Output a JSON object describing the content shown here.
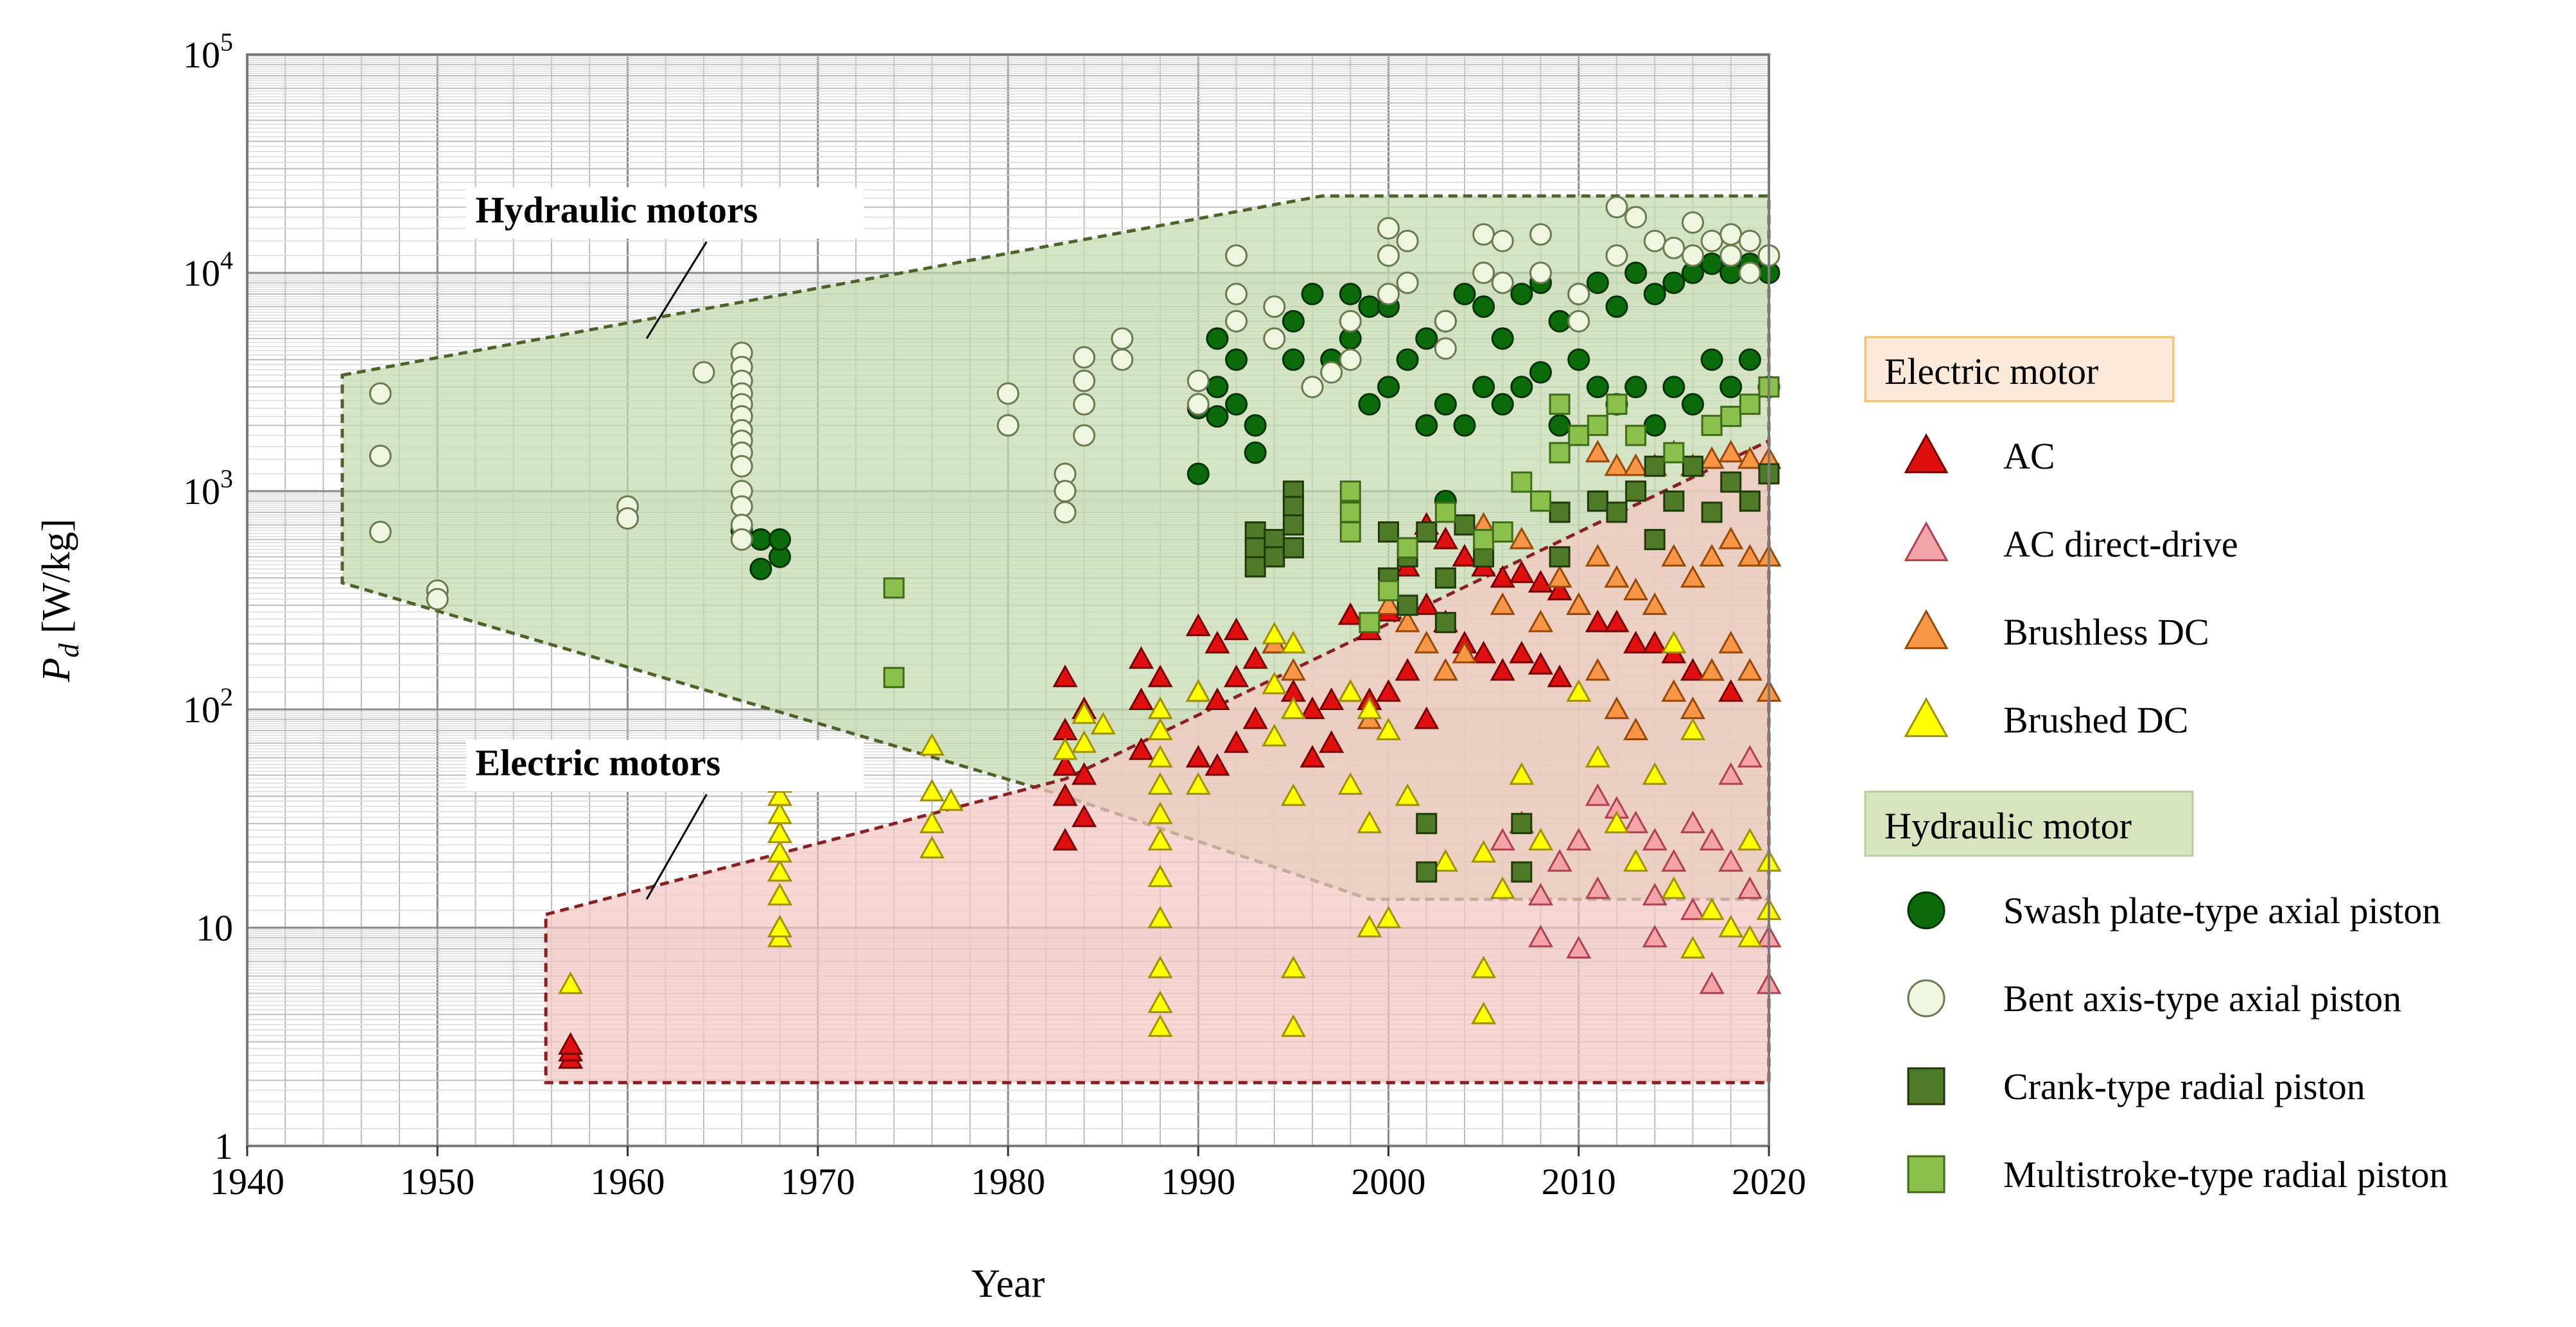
{
  "chart_data": {
    "type": "scatter",
    "title": "",
    "xlabel": "Year",
    "ylabel_main": "P",
    "ylabel_sub": "d",
    "ylabel_units": " [W/kg]",
    "xlim": [
      1940,
      2020
    ],
    "ylim": [
      1,
      100000
    ],
    "yscale": "log",
    "grid": true,
    "x_ticks": [
      1940,
      1950,
      1960,
      1970,
      1980,
      1990,
      2000,
      2010,
      2020
    ],
    "y_ticks": [
      {
        "value": 1,
        "label": "1",
        "sup": ""
      },
      {
        "value": 10,
        "label": "10",
        "sup": ""
      },
      {
        "value": 100,
        "label": "10",
        "sup": "2"
      },
      {
        "value": 1000,
        "label": "10",
        "sup": "3"
      },
      {
        "value": 10000,
        "label": "10",
        "sup": "4"
      },
      {
        "value": 100000,
        "label": "10",
        "sup": "5"
      }
    ],
    "regions": [
      {
        "name": "Hydraulic motors",
        "polygon": [
          [
            1945,
            3400
          ],
          [
            1996.5,
            22500
          ],
          [
            2020,
            22500
          ],
          [
            2020,
            13.5
          ],
          [
            1999,
            13.5
          ],
          [
            1983,
            40
          ],
          [
            1945,
            380
          ]
        ],
        "fill": "#c6d9b0",
        "stroke": "#4f6228",
        "label": "Hydraulic motors",
        "label_at": [
          1952,
          17000
        ],
        "leader_to": [
          1961,
          5000
        ]
      },
      {
        "name": "Electric motors",
        "polygon": [
          [
            1955.7,
            11.5
          ],
          [
            1983,
            48
          ],
          [
            2020,
            1700
          ],
          [
            2020,
            1.95
          ],
          [
            1955.7,
            1.95
          ]
        ],
        "fill": "#f4c7c3",
        "stroke": "#8b2020",
        "label": "Electric motors",
        "label_at": [
          1952,
          50
        ],
        "leader_to": [
          1961,
          13.5
        ]
      }
    ],
    "series": [
      {
        "name": "AC",
        "marker": "triangle",
        "fill": "#e01010",
        "edge": "#7a0000",
        "x": [
          1957,
          1957,
          1957,
          1983,
          1983,
          1983,
          1983,
          1983,
          1984,
          1984,
          1984,
          1987,
          1987,
          1987,
          1988,
          1990,
          1990,
          1990,
          1991,
          1991,
          1991,
          1992,
          1992,
          1992,
          1993,
          1993,
          1994,
          1995,
          1996,
          1996,
          1997,
          1997,
          1998,
          1998,
          1999,
          1999,
          2000,
          2000,
          2001,
          2001,
          2002,
          2002,
          2002,
          2003,
          2003,
          2004,
          2004,
          2005,
          2005,
          2006,
          2006,
          2007,
          2007,
          2008,
          2008,
          2009,
          2009,
          2010,
          2011,
          2012,
          2013,
          2014,
          2015,
          2016,
          2017,
          2018
        ],
        "y": [
          2.5,
          2.7,
          2.9,
          140,
          80,
          40,
          25,
          55,
          100,
          50,
          32,
          170,
          110,
          65,
          140,
          240,
          120,
          60,
          200,
          110,
          55,
          230,
          140,
          70,
          170,
          90,
          200,
          120,
          100,
          60,
          110,
          70,
          270,
          120,
          230,
          110,
          280,
          120,
          450,
          150,
          700,
          300,
          90,
          600,
          250,
          500,
          200,
          450,
          180,
          400,
          150,
          420,
          180,
          380,
          160,
          350,
          140,
          300,
          250,
          250,
          200,
          200,
          180,
          150,
          150,
          120
        ]
      },
      {
        "name": "AC direct-drive",
        "marker": "triangle",
        "fill": "#f4a3a8",
        "edge": "#b04050",
        "x": [
          2006,
          2007,
          2008,
          2008,
          2009,
          2010,
          2010,
          2011,
          2011,
          2012,
          2013,
          2014,
          2014,
          2014,
          2015,
          2016,
          2016,
          2017,
          2017,
          2018,
          2018,
          2019,
          2019,
          2020,
          2020
        ],
        "y": [
          25,
          30,
          9,
          14,
          20,
          8,
          25,
          15,
          40,
          35,
          30,
          9,
          14,
          25,
          20,
          12,
          30,
          5.5,
          25,
          20,
          50,
          15,
          60,
          5.5,
          9
        ]
      },
      {
        "name": "Brushless DC",
        "marker": "triangle",
        "fill": "#f79646",
        "edge": "#984807",
        "x": [
          1994,
          1995,
          1998,
          1999,
          2000,
          2001,
          2002,
          2003,
          2004,
          2005,
          2006,
          2007,
          2008,
          2009,
          2010,
          2011,
          2011,
          2011,
          2012,
          2012,
          2012,
          2013,
          2013,
          2013,
          2014,
          2014,
          2015,
          2015,
          2015,
          2016,
          2016,
          2016,
          2017,
          2017,
          2017,
          2018,
          2018,
          2018,
          2019,
          2019,
          2019,
          2020,
          2020,
          2020
        ],
        "y": [
          200,
          150,
          120,
          90,
          300,
          250,
          200,
          150,
          180,
          700,
          300,
          600,
          250,
          400,
          300,
          1500,
          500,
          150,
          1300,
          400,
          100,
          1300,
          350,
          80,
          1300,
          300,
          1500,
          500,
          120,
          1300,
          400,
          100,
          1400,
          500,
          150,
          1500,
          600,
          200,
          1400,
          500,
          150,
          1400,
          500,
          120
        ]
      },
      {
        "name": "Brushed DC",
        "marker": "triangle",
        "fill": "#ffff00",
        "edge": "#a09000",
        "x": [
          1957,
          1968,
          1968,
          1968,
          1968,
          1968,
          1968,
          1968,
          1968,
          1968,
          1976,
          1976,
          1976,
          1976,
          1977,
          1983,
          1984,
          1984,
          1985,
          1988,
          1988,
          1988,
          1988,
          1988,
          1988,
          1988,
          1988,
          1988,
          1988,
          1988,
          1990,
          1990,
          1994,
          1994,
          1994,
          1995,
          1995,
          1995,
          1995,
          1995,
          1998,
          1998,
          1999,
          1999,
          1999,
          2000,
          2000,
          2001,
          2003,
          2005,
          2005,
          2005,
          2006,
          2007,
          2008,
          2010,
          2011,
          2012,
          2013,
          2014,
          2015,
          2015,
          2016,
          2016,
          2017,
          2018,
          2019,
          2019,
          2020,
          2020
        ],
        "y": [
          5.5,
          9,
          10,
          14,
          18,
          22,
          27,
          33,
          40,
          46,
          23,
          30,
          42,
          68,
          38,
          65,
          95,
          70,
          85,
          100,
          80,
          60,
          45,
          33,
          25,
          17,
          11,
          6.5,
          4.5,
          3.5,
          120,
          45,
          220,
          130,
          75,
          200,
          100,
          40,
          6.5,
          3.5,
          120,
          45,
          100,
          30,
          10,
          80,
          11,
          40,
          20,
          22,
          6.5,
          4,
          15,
          50,
          25,
          120,
          60,
          30,
          20,
          50,
          200,
          15,
          80,
          8,
          12,
          10,
          9,
          25,
          12,
          20
        ]
      },
      {
        "name": "Swash plate-type axial piston",
        "marker": "circle",
        "fill": "#0b6b0b",
        "edge": "#003300",
        "x": [
          1966,
          1967,
          1967,
          1968,
          1968,
          1990,
          1990,
          1991,
          1991,
          1991,
          1992,
          1992,
          1993,
          1993,
          1995,
          1995,
          1996,
          1997,
          1998,
          1998,
          1999,
          1999,
          2000,
          2000,
          2001,
          2002,
          2002,
          2003,
          2003,
          2003,
          2004,
          2004,
          2005,
          2005,
          2006,
          2006,
          2007,
          2007,
          2008,
          2008,
          2009,
          2009,
          2010,
          2010,
          2011,
          2011,
          2012,
          2012,
          2013,
          2013,
          2014,
          2014,
          2015,
          2015,
          2016,
          2016,
          2017,
          2017,
          2018,
          2018,
          2019,
          2019,
          2020,
          2020
        ],
        "y": [
          660,
          600,
          440,
          500,
          600,
          1200,
          2400,
          2200,
          3000,
          5000,
          2500,
          4000,
          2000,
          1500,
          4000,
          6000,
          8000,
          4000,
          5000,
          8000,
          2500,
          7000,
          3000,
          7000,
          4000,
          2000,
          5000,
          2500,
          6000,
          900,
          2000,
          8000,
          3000,
          7000,
          2500,
          5000,
          3000,
          8000,
          3500,
          9000,
          2000,
          6000,
          4000,
          8000,
          3000,
          9000,
          2500,
          7000,
          3000,
          10000,
          2000,
          8000,
          3000,
          9000,
          2500,
          10000,
          4000,
          11000,
          3000,
          10000,
          4000,
          11000,
          3000,
          10000
        ]
      },
      {
        "name": "Bent axis-type axial piston",
        "marker": "circle",
        "fill": "#f0f5e0",
        "edge": "#6a7a50",
        "x": [
          1947,
          1947,
          1947,
          1950,
          1950,
          1960,
          1960,
          1964,
          1966,
          1966,
          1966,
          1966,
          1966,
          1966,
          1966,
          1966,
          1966,
          1966,
          1966,
          1966,
          1966,
          1966,
          1980,
          1980,
          1983,
          1983,
          1983,
          1984,
          1984,
          1984,
          1984,
          1986,
          1986,
          1990,
          1990,
          1992,
          1992,
          1992,
          1994,
          1994,
          1996,
          1997,
          1998,
          1998,
          2000,
          2000,
          2000,
          2001,
          2001,
          2003,
          2003,
          2005,
          2005,
          2006,
          2006,
          2008,
          2008,
          2010,
          2010,
          2012,
          2012,
          2013,
          2014,
          2015,
          2016,
          2016,
          2017,
          2018,
          2018,
          2019,
          2019,
          2020
        ],
        "y": [
          2800,
          1450,
          650,
          350,
          320,
          850,
          750,
          3500,
          4300,
          3700,
          3200,
          2800,
          2500,
          2200,
          1900,
          1700,
          1500,
          1300,
          1000,
          850,
          700,
          600,
          2800,
          2000,
          1200,
          1000,
          800,
          4100,
          3200,
          2500,
          1800,
          5000,
          4000,
          3200,
          2500,
          12000,
          8000,
          6000,
          7000,
          5000,
          3000,
          3500,
          6000,
          4000,
          16000,
          12000,
          8000,
          14000,
          9000,
          6000,
          4500,
          15000,
          10000,
          14000,
          9000,
          15000,
          10000,
          8000,
          6000,
          20000,
          12000,
          18000,
          14000,
          13000,
          17000,
          12000,
          14000,
          15000,
          12000,
          14000,
          10000,
          12000
        ]
      },
      {
        "name": "Crank-type radial piston",
        "marker": "square",
        "fill": "#4f7a28",
        "edge": "#1f3a08",
        "x": [
          1993,
          1993,
          1993,
          1994,
          1994,
          1995,
          1995,
          1995,
          1995,
          2000,
          2000,
          2001,
          2001,
          2002,
          2002,
          2002,
          2003,
          2003,
          2004,
          2005,
          2007,
          2007,
          2009,
          2009,
          2009,
          2011,
          2012,
          2013,
          2014,
          2014,
          2015,
          2016,
          2017,
          2018,
          2019,
          2020
        ],
        "y": [
          650,
          550,
          450,
          600,
          500,
          1000,
          850,
          700,
          550,
          650,
          400,
          500,
          300,
          650,
          30,
          18,
          400,
          250,
          700,
          500,
          30,
          18,
          1500,
          800,
          500,
          900,
          800,
          1000,
          1300,
          600,
          900,
          1300,
          800,
          1100,
          900,
          1200
        ]
      },
      {
        "name": "Multistroke-type radial piston",
        "marker": "square",
        "fill": "#8cc04c",
        "edge": "#3f6a18",
        "x": [
          1974,
          1974,
          1998,
          1998,
          1998,
          1999,
          2000,
          2001,
          2003,
          2005,
          2006,
          2007,
          2008,
          2009,
          2009,
          2010,
          2011,
          2012,
          2013,
          2015,
          2017,
          2018,
          2019,
          2020
        ],
        "y": [
          360,
          140,
          1000,
          800,
          650,
          250,
          350,
          550,
          800,
          600,
          650,
          1100,
          900,
          2500,
          1500,
          1800,
          2000,
          2500,
          1800,
          1500,
          2000,
          2200,
          2500,
          3000
        ]
      }
    ],
    "legend": {
      "placement": "right",
      "groups": [
        {
          "title": "Electric motor",
          "title_fill": "#fde9d9",
          "title_edge": "#f0c060",
          "items": [
            "AC",
            "AC direct-drive",
            "Brushless DC",
            "Brushed DC"
          ]
        },
        {
          "title": "Hydraulic motor",
          "title_fill": "#d7e4bd",
          "title_edge": "#b8cca0",
          "items": [
            "Swash plate-type axial piston",
            "Bent axis-type axial piston",
            "Crank-type radial piston",
            "Multistroke-type radial piston"
          ]
        }
      ]
    }
  }
}
